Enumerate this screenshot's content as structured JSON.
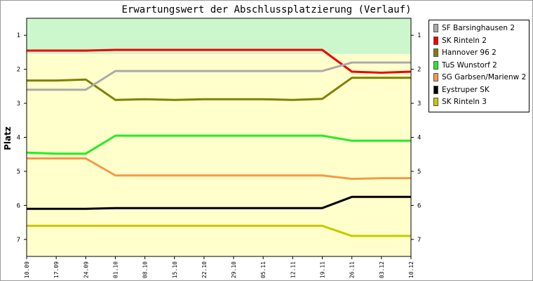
{
  "chart_data": {
    "type": "line",
    "title": "Erwartungswert der Abschlussplatzierung (Verlauf)",
    "xlabel": "",
    "ylabel": "Platz",
    "x": [
      "10.09",
      "17.09",
      "24.09",
      "01.10",
      "08.10",
      "15.10",
      "22.10",
      "29.10",
      "05.11",
      "12.11",
      "19.11",
      "26.11",
      "03.12",
      "10.12"
    ],
    "ylim": [
      0.5,
      7.5
    ],
    "y_inverted": true,
    "yticks": [
      1,
      2,
      3,
      4,
      5,
      6,
      7
    ],
    "grid": false,
    "legend_position": "right",
    "bands": [
      {
        "from": 0.5,
        "to": 1.55,
        "color": "#ccf7cc"
      },
      {
        "from": 1.55,
        "to": 7.5,
        "color": "#ffffcc"
      }
    ],
    "series": [
      {
        "name": "SF Barsinghausen 2",
        "color": "#aaaaaa",
        "values": [
          2.6,
          2.6,
          2.6,
          2.05,
          2.05,
          2.05,
          2.05,
          2.05,
          2.05,
          2.05,
          2.05,
          1.8,
          1.8,
          1.8
        ]
      },
      {
        "name": "SK Rinteln 2",
        "color": "#ee0000",
        "values": [
          1.45,
          1.45,
          1.45,
          1.43,
          1.43,
          1.43,
          1.43,
          1.43,
          1.43,
          1.43,
          1.43,
          2.07,
          2.1,
          2.07
        ]
      },
      {
        "name": "Hannover 96 2",
        "color": "#808000",
        "values": [
          2.33,
          2.33,
          2.3,
          2.9,
          2.88,
          2.9,
          2.88,
          2.88,
          2.88,
          2.9,
          2.87,
          2.25,
          2.25,
          2.25
        ]
      },
      {
        "name": "TuS Wunstorf 2",
        "color": "#22ee22",
        "values": [
          4.45,
          4.48,
          4.48,
          3.95,
          3.95,
          3.95,
          3.95,
          3.95,
          3.95,
          3.95,
          3.95,
          4.1,
          4.1,
          4.1
        ]
      },
      {
        "name": "SG Garbsen/Marienw 2",
        "color": "#f59a45",
        "values": [
          4.62,
          4.62,
          4.62,
          5.12,
          5.12,
          5.12,
          5.12,
          5.12,
          5.12,
          5.12,
          5.12,
          5.22,
          5.2,
          5.2
        ]
      },
      {
        "name": "Eystruper SK",
        "color": "#000000",
        "values": [
          6.1,
          6.1,
          6.1,
          6.08,
          6.08,
          6.08,
          6.08,
          6.08,
          6.08,
          6.08,
          6.08,
          5.75,
          5.75,
          5.75
        ]
      },
      {
        "name": "SK Rinteln 3",
        "color": "#c8c800",
        "values": [
          6.6,
          6.6,
          6.6,
          6.6,
          6.6,
          6.6,
          6.6,
          6.6,
          6.6,
          6.6,
          6.6,
          6.9,
          6.9,
          6.9
        ]
      }
    ]
  }
}
